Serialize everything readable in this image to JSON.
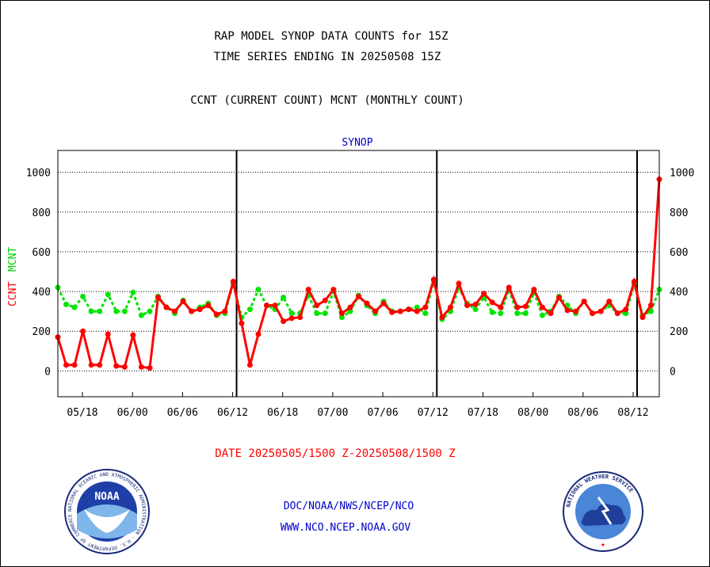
{
  "header": {
    "title_line1": "RAP MODEL SYNOP DATA COUNTS for 15Z",
    "title_line2": "TIME SERIES ENDING IN 20250508 15Z",
    "subtitle": "CCNT (CURRENT COUNT) MCNT (MONTHLY COUNT)",
    "panel_label": "SYNOP"
  },
  "axis": {
    "ylabel_ccnt": "CCNT",
    "ylabel_mcnt": "MCNT"
  },
  "footer": {
    "date_range": "DATE 20250505/1500 Z-20250508/1500 Z",
    "org_line": "DOC/NOAA/NWS/NCEP/NCO",
    "url_line": "WWW.NCO.NCEP.NOAA.GOV"
  },
  "logos": {
    "noaa_text": "NOAA",
    "noaa_ring_text": "NATIONAL OCEANIC AND ATMOSPHERIC ADMINISTRATION · U.S. DEPARTMENT OF COMMERCE ·",
    "nws_ring_text": "NATIONAL WEATHER SERVICE"
  },
  "colors": {
    "ccnt": "#ff0000",
    "mcnt": "#00e400",
    "panel_label": "#0000cc",
    "footer_link": "#0000cc",
    "date_text": "#ff0000"
  },
  "chart_data": {
    "type": "line",
    "title": "RAP MODEL SYNOP DATA COUNTS for 15Z",
    "ylim": [
      -130,
      1110
    ],
    "yticks": [
      0,
      200,
      400,
      600,
      800,
      1000
    ],
    "grid": true,
    "x_tick_labels": [
      "05/18",
      "06/00",
      "06/06",
      "06/12",
      "06/18",
      "07/00",
      "07/06",
      "07/12",
      "07/18",
      "08/00",
      "08/06",
      "08/12"
    ],
    "day_separators_after_tick": [
      "06/12",
      "07/12",
      "08/12"
    ],
    "series": [
      {
        "name": "CCNT",
        "color": "#ff0000",
        "values": [
          170,
          30,
          30,
          200,
          30,
          30,
          185,
          25,
          20,
          180,
          20,
          15,
          370,
          320,
          300,
          350,
          300,
          310,
          330,
          285,
          300,
          450,
          240,
          30,
          185,
          330,
          330,
          250,
          265,
          270,
          410,
          330,
          355,
          410,
          290,
          320,
          375,
          340,
          300,
          340,
          295,
          300,
          310,
          300,
          320,
          460,
          270,
          320,
          440,
          330,
          335,
          390,
          345,
          320,
          420,
          320,
          325,
          410,
          320,
          290,
          370,
          305,
          300,
          350,
          290,
          300,
          350,
          290,
          310,
          450,
          270,
          330,
          965
        ]
      },
      {
        "name": "MCNT",
        "color": "#00e400",
        "values": [
          420,
          335,
          320,
          375,
          300,
          300,
          385,
          300,
          300,
          395,
          280,
          300,
          375,
          320,
          290,
          355,
          300,
          320,
          340,
          280,
          290,
          440,
          270,
          310,
          410,
          330,
          310,
          370,
          290,
          290,
          380,
          290,
          290,
          400,
          270,
          300,
          380,
          330,
          290,
          350,
          300,
          300,
          310,
          320,
          290,
          455,
          260,
          300,
          420,
          340,
          310,
          370,
          295,
          290,
          410,
          290,
          290,
          395,
          280,
          300,
          375,
          330,
          290,
          350,
          290,
          300,
          330,
          290,
          290,
          440,
          280,
          300,
          410
        ]
      }
    ]
  }
}
